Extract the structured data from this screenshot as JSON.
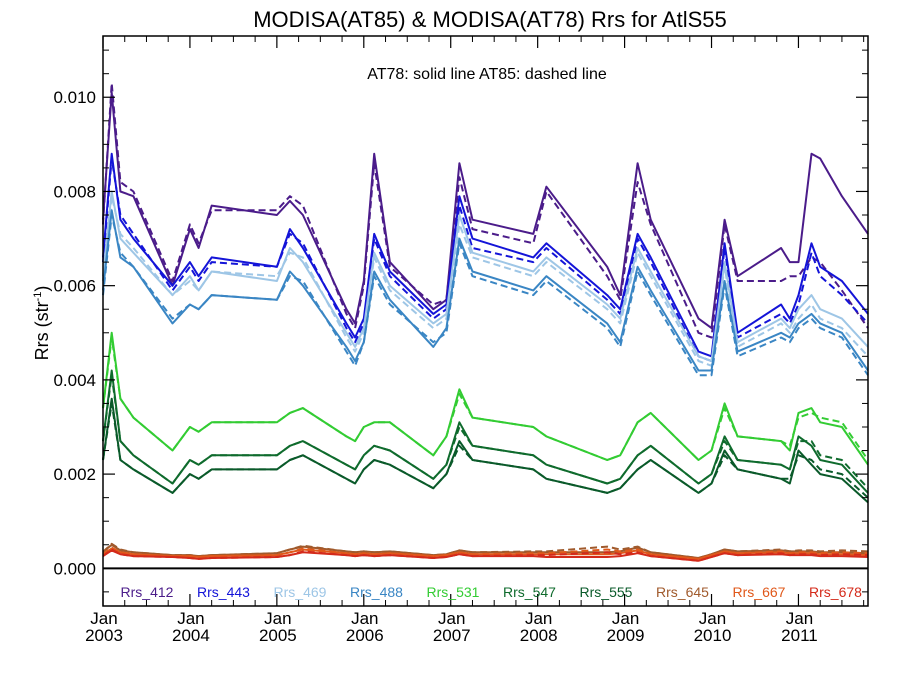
{
  "chart_data": {
    "type": "line",
    "title": "MODISA(AT85) & MODISA(AT78)  Rrs for AtlS55",
    "annotation": "AT78: solid line   AT85: dashed line",
    "ylabel_main": "Rrs (str",
    "ylabel_sup": "-1",
    "ylabel_close": ")",
    "ylim": [
      -0.0008,
      0.0113
    ],
    "xlim": [
      2003.0,
      2011.8
    ],
    "yticks": [
      {
        "value": 0.0,
        "label": "0.000"
      },
      {
        "value": 0.002,
        "label": "0.002"
      },
      {
        "value": 0.004,
        "label": "0.004"
      },
      {
        "value": 0.006,
        "label": "0.006"
      },
      {
        "value": 0.008,
        "label": "0.008"
      },
      {
        "value": 0.01,
        "label": "0.010"
      }
    ],
    "xticks": [
      {
        "value": 2003.0,
        "month": "Jan",
        "year": "2003"
      },
      {
        "value": 2004.0,
        "month": "Jan",
        "year": "2004"
      },
      {
        "value": 2005.0,
        "month": "Jan",
        "year": "2005"
      },
      {
        "value": 2006.0,
        "month": "Jan",
        "year": "2006"
      },
      {
        "value": 2007.0,
        "month": "Jan",
        "year": "2007"
      },
      {
        "value": 2008.0,
        "month": "Jan",
        "year": "2008"
      },
      {
        "value": 2009.0,
        "month": "Jan",
        "year": "2009"
      },
      {
        "value": 2010.0,
        "month": "Jan",
        "year": "2010"
      },
      {
        "value": 2011.0,
        "month": "Jan",
        "year": "2011"
      }
    ],
    "grid": false,
    "legend": "bottom, inside plot",
    "x": [
      2003.0,
      2003.1,
      2003.2,
      2003.35,
      2003.8,
      2004.0,
      2004.1,
      2004.25,
      2005.0,
      2005.15,
      2005.3,
      2005.8,
      2005.9,
      2006.0,
      2006.12,
      2006.3,
      2006.8,
      2006.95,
      2007.1,
      2007.25,
      2007.95,
      2008.1,
      2008.8,
      2008.95,
      2009.15,
      2009.3,
      2009.85,
      2010.0,
      2010.15,
      2010.3,
      2010.8,
      2010.9,
      2011.0,
      2011.15,
      2011.25,
      2011.5,
      2011.8
    ],
    "series": [
      {
        "name": "Rrs_412",
        "color": "#4b1c8a",
        "solid": [
          0.0074,
          0.0101,
          0.008,
          0.0079,
          0.006,
          0.0072,
          0.0068,
          0.0077,
          0.0075,
          0.0078,
          0.0075,
          0.0055,
          0.0052,
          0.0061,
          0.0088,
          0.0065,
          0.0055,
          0.0057,
          0.0086,
          0.0074,
          0.0071,
          0.0081,
          0.0064,
          0.0058,
          0.0086,
          0.0074,
          0.0053,
          0.0051,
          0.0074,
          0.0062,
          0.0068,
          0.0065,
          0.0065,
          0.0088,
          0.0087,
          0.0079,
          0.0071
        ],
        "dashed": [
          0.0073,
          0.0103,
          0.0082,
          0.008,
          0.0061,
          0.0073,
          0.0069,
          0.0076,
          0.0076,
          0.0079,
          0.0077,
          0.0054,
          0.0051,
          0.006,
          0.0086,
          0.0064,
          0.0056,
          0.0057,
          0.0083,
          0.0072,
          0.0069,
          0.008,
          0.0062,
          0.0057,
          0.0082,
          0.0073,
          0.005,
          0.0049,
          0.0073,
          0.0061,
          0.0061,
          0.0062,
          0.0062,
          0.0066,
          0.0065,
          0.0059,
          0.0051
        ]
      },
      {
        "name": "Rrs_443",
        "color": "#1414d8",
        "solid": [
          0.0066,
          0.0088,
          0.0074,
          0.007,
          0.006,
          0.0065,
          0.0062,
          0.0066,
          0.0064,
          0.0072,
          0.0068,
          0.0052,
          0.0049,
          0.0053,
          0.0071,
          0.0063,
          0.0054,
          0.0056,
          0.0079,
          0.007,
          0.0066,
          0.0069,
          0.0058,
          0.0055,
          0.0071,
          0.0066,
          0.0046,
          0.0045,
          0.0069,
          0.005,
          0.0056,
          0.0053,
          0.0058,
          0.0069,
          0.0064,
          0.0061,
          0.0054
        ],
        "dashed": [
          0.0065,
          0.0087,
          0.0075,
          0.0071,
          0.0059,
          0.0064,
          0.0061,
          0.0065,
          0.0064,
          0.0071,
          0.0069,
          0.0051,
          0.0048,
          0.0052,
          0.007,
          0.0062,
          0.0053,
          0.0055,
          0.0077,
          0.0068,
          0.0065,
          0.0068,
          0.0057,
          0.0054,
          0.007,
          0.0065,
          0.0045,
          0.0044,
          0.0068,
          0.0049,
          0.0054,
          0.0052,
          0.0056,
          0.0067,
          0.0062,
          0.0058,
          0.0052
        ]
      },
      {
        "name": "Rrs_469",
        "color": "#9ec6e6",
        "solid": [
          0.0062,
          0.008,
          0.007,
          0.0067,
          0.0058,
          0.0062,
          0.0059,
          0.0063,
          0.0061,
          0.0068,
          0.0065,
          0.005,
          0.0047,
          0.0051,
          0.0067,
          0.006,
          0.0052,
          0.0054,
          0.0075,
          0.0067,
          0.0063,
          0.0066,
          0.0056,
          0.0053,
          0.0068,
          0.0063,
          0.0045,
          0.0044,
          0.0065,
          0.0048,
          0.0053,
          0.0051,
          0.0055,
          0.0058,
          0.0055,
          0.0053,
          0.0047
        ],
        "dashed": [
          0.0061,
          0.0079,
          0.0071,
          0.0068,
          0.0058,
          0.0061,
          0.0059,
          0.0063,
          0.0062,
          0.0067,
          0.0066,
          0.0049,
          0.0046,
          0.005,
          0.0066,
          0.0059,
          0.0051,
          0.0053,
          0.0073,
          0.0066,
          0.0062,
          0.0065,
          0.0055,
          0.0052,
          0.0067,
          0.0062,
          0.0044,
          0.0043,
          0.0064,
          0.0047,
          0.0052,
          0.005,
          0.0053,
          0.0056,
          0.0053,
          0.0051,
          0.0045
        ]
      },
      {
        "name": "Rrs_488",
        "color": "#3a86c4",
        "solid": [
          0.0059,
          0.0076,
          0.0066,
          0.0064,
          0.0052,
          0.0056,
          0.0055,
          0.0058,
          0.0057,
          0.0063,
          0.006,
          0.0047,
          0.0044,
          0.0048,
          0.0063,
          0.0057,
          0.0047,
          0.0051,
          0.007,
          0.0063,
          0.0059,
          0.0062,
          0.0052,
          0.0048,
          0.0064,
          0.0059,
          0.0042,
          0.0042,
          0.0061,
          0.0046,
          0.005,
          0.0049,
          0.0052,
          0.0054,
          0.0052,
          0.005,
          0.0042
        ],
        "dashed": [
          0.0058,
          0.0075,
          0.0067,
          0.0064,
          0.0053,
          0.0056,
          0.0055,
          0.0058,
          0.0057,
          0.0062,
          0.0061,
          0.0046,
          0.0043,
          0.0048,
          0.0062,
          0.0056,
          0.0048,
          0.005,
          0.0069,
          0.0062,
          0.0058,
          0.0061,
          0.0051,
          0.0047,
          0.0063,
          0.0058,
          0.0041,
          0.0041,
          0.006,
          0.0045,
          0.0049,
          0.0048,
          0.0051,
          0.0053,
          0.0051,
          0.0049,
          0.0041
        ]
      },
      {
        "name": "Rrs_531",
        "color": "#33cc33",
        "solid": [
          0.0034,
          0.005,
          0.0036,
          0.0032,
          0.0025,
          0.003,
          0.0029,
          0.0031,
          0.0031,
          0.0033,
          0.0034,
          0.0028,
          0.0027,
          0.003,
          0.0031,
          0.0031,
          0.0024,
          0.0028,
          0.0038,
          0.0032,
          0.003,
          0.0028,
          0.0023,
          0.0024,
          0.0031,
          0.0033,
          0.0023,
          0.0025,
          0.0035,
          0.0028,
          0.0027,
          0.0025,
          0.0033,
          0.0034,
          0.0031,
          0.003,
          0.0022
        ],
        "dashed": [
          0.0034,
          0.0049,
          0.0036,
          0.0032,
          0.0025,
          0.003,
          0.0029,
          0.0031,
          0.0031,
          0.0033,
          0.0034,
          0.0028,
          0.0027,
          0.003,
          0.0031,
          0.0031,
          0.0024,
          0.0028,
          0.0037,
          0.0032,
          0.003,
          0.0028,
          0.0023,
          0.0024,
          0.0031,
          0.0033,
          0.0023,
          0.0025,
          0.0034,
          0.0028,
          0.0027,
          0.0026,
          0.0032,
          0.0033,
          0.0032,
          0.0031,
          0.0023
        ]
      },
      {
        "name": "Rrs_547",
        "color": "#0f6b2d",
        "solid": [
          0.0027,
          0.0042,
          0.0027,
          0.0024,
          0.0018,
          0.0023,
          0.0022,
          0.0024,
          0.0024,
          0.0026,
          0.0027,
          0.0022,
          0.0021,
          0.0024,
          0.0026,
          0.0025,
          0.0019,
          0.0022,
          0.0031,
          0.0026,
          0.0024,
          0.0022,
          0.0018,
          0.0019,
          0.0024,
          0.0026,
          0.0018,
          0.002,
          0.0028,
          0.0023,
          0.0022,
          0.0021,
          0.0028,
          0.0026,
          0.0023,
          0.0022,
          0.0016
        ],
        "dashed": [
          0.0027,
          0.0041,
          0.0027,
          0.0024,
          0.0018,
          0.0023,
          0.0022,
          0.0024,
          0.0024,
          0.0026,
          0.0027,
          0.0022,
          0.0021,
          0.0024,
          0.0026,
          0.0025,
          0.0019,
          0.0022,
          0.003,
          0.0026,
          0.0024,
          0.0022,
          0.0018,
          0.0019,
          0.0024,
          0.0026,
          0.0018,
          0.002,
          0.0027,
          0.0023,
          0.0022,
          0.0021,
          0.0027,
          0.0027,
          0.0024,
          0.0023,
          0.0017
        ]
      },
      {
        "name": "Rrs_555",
        "color": "#0a5a2a",
        "solid": [
          0.0023,
          0.0036,
          0.0023,
          0.0021,
          0.0016,
          0.002,
          0.0019,
          0.0021,
          0.0021,
          0.0023,
          0.0024,
          0.0019,
          0.0018,
          0.0021,
          0.0023,
          0.0022,
          0.0017,
          0.002,
          0.0027,
          0.0023,
          0.0021,
          0.0019,
          0.0016,
          0.0017,
          0.0021,
          0.0023,
          0.0016,
          0.0018,
          0.0025,
          0.0021,
          0.0019,
          0.0018,
          0.0025,
          0.0022,
          0.002,
          0.0019,
          0.0014
        ],
        "dashed": [
          0.0023,
          0.0035,
          0.0023,
          0.0021,
          0.0016,
          0.002,
          0.0019,
          0.0021,
          0.0021,
          0.0023,
          0.0024,
          0.0019,
          0.0018,
          0.0021,
          0.0023,
          0.0022,
          0.0017,
          0.002,
          0.0026,
          0.0023,
          0.0021,
          0.0019,
          0.0016,
          0.0017,
          0.0021,
          0.0023,
          0.0016,
          0.0018,
          0.0024,
          0.0021,
          0.0019,
          0.0019,
          0.0024,
          0.0023,
          0.0021,
          0.002,
          0.0015
        ]
      },
      {
        "name": "Rrs_645",
        "color": "#a05a2c",
        "solid": [
          0.00035,
          0.0005,
          0.00038,
          0.00034,
          0.00028,
          0.00028,
          0.00026,
          0.00028,
          0.00032,
          0.0004,
          0.00046,
          0.00036,
          0.00034,
          0.00036,
          0.00034,
          0.00036,
          0.00028,
          0.0003,
          0.00038,
          0.00034,
          0.00034,
          0.00034,
          0.00034,
          0.00036,
          0.00044,
          0.00034,
          0.00022,
          0.0003,
          0.0004,
          0.00036,
          0.00038,
          0.00036,
          0.00036,
          0.00036,
          0.00034,
          0.00034,
          0.00032
        ],
        "dashed": [
          0.00035,
          0.00052,
          0.0004,
          0.00034,
          0.00028,
          0.00028,
          0.00026,
          0.00028,
          0.00032,
          0.0004,
          0.00048,
          0.00036,
          0.00034,
          0.00036,
          0.00034,
          0.00036,
          0.00028,
          0.0003,
          0.00038,
          0.00034,
          0.00036,
          0.00036,
          0.00046,
          0.0004,
          0.00046,
          0.00034,
          0.00022,
          0.0003,
          0.0004,
          0.00036,
          0.0004,
          0.00036,
          0.00038,
          0.00038,
          0.00036,
          0.00038,
          0.00036
        ]
      },
      {
        "name": "Rrs_667",
        "color": "#e0581a",
        "solid": [
          0.0003,
          0.00042,
          0.00034,
          0.0003,
          0.00026,
          0.00026,
          0.00024,
          0.00026,
          0.00028,
          0.00034,
          0.0004,
          0.00032,
          0.0003,
          0.00032,
          0.0003,
          0.00032,
          0.00026,
          0.00028,
          0.00034,
          0.0003,
          0.0003,
          0.0003,
          0.0003,
          0.00032,
          0.00038,
          0.0003,
          0.0002,
          0.00028,
          0.00036,
          0.00032,
          0.00034,
          0.00032,
          0.00032,
          0.00032,
          0.0003,
          0.0003,
          0.00028
        ],
        "dashed": [
          0.0003,
          0.00044,
          0.00034,
          0.0003,
          0.00026,
          0.00026,
          0.00024,
          0.00026,
          0.00028,
          0.00034,
          0.00042,
          0.00032,
          0.0003,
          0.00032,
          0.0003,
          0.00032,
          0.00026,
          0.00028,
          0.00034,
          0.0003,
          0.00032,
          0.00032,
          0.0004,
          0.00036,
          0.0004,
          0.0003,
          0.0002,
          0.00028,
          0.00036,
          0.00032,
          0.00036,
          0.00032,
          0.00034,
          0.00034,
          0.00032,
          0.00034,
          0.00032
        ]
      },
      {
        "name": "Rrs_678",
        "color": "#d42a1a",
        "solid": [
          0.00026,
          0.00038,
          0.0003,
          0.00026,
          0.00024,
          0.00022,
          0.0002,
          0.00022,
          0.00024,
          0.00028,
          0.00034,
          0.00028,
          0.00026,
          0.00028,
          0.00026,
          0.00028,
          0.00022,
          0.00024,
          0.0003,
          0.00026,
          0.00026,
          0.00024,
          0.00024,
          0.00026,
          0.00032,
          0.00026,
          0.00016,
          0.00024,
          0.00032,
          0.00028,
          0.0003,
          0.00028,
          0.00028,
          0.00028,
          0.00026,
          0.00026,
          0.00024
        ],
        "dashed": [
          0.00026,
          0.0004,
          0.0003,
          0.00026,
          0.00024,
          0.00022,
          0.0002,
          0.00022,
          0.00024,
          0.00028,
          0.00036,
          0.00028,
          0.00026,
          0.00028,
          0.00026,
          0.00028,
          0.00022,
          0.00024,
          0.0003,
          0.00026,
          0.00028,
          0.00028,
          0.00034,
          0.0003,
          0.00034,
          0.00026,
          0.00016,
          0.00024,
          0.00032,
          0.00028,
          0.00032,
          0.00028,
          0.0003,
          0.0003,
          0.00028,
          0.0003,
          0.00028
        ]
      }
    ]
  }
}
